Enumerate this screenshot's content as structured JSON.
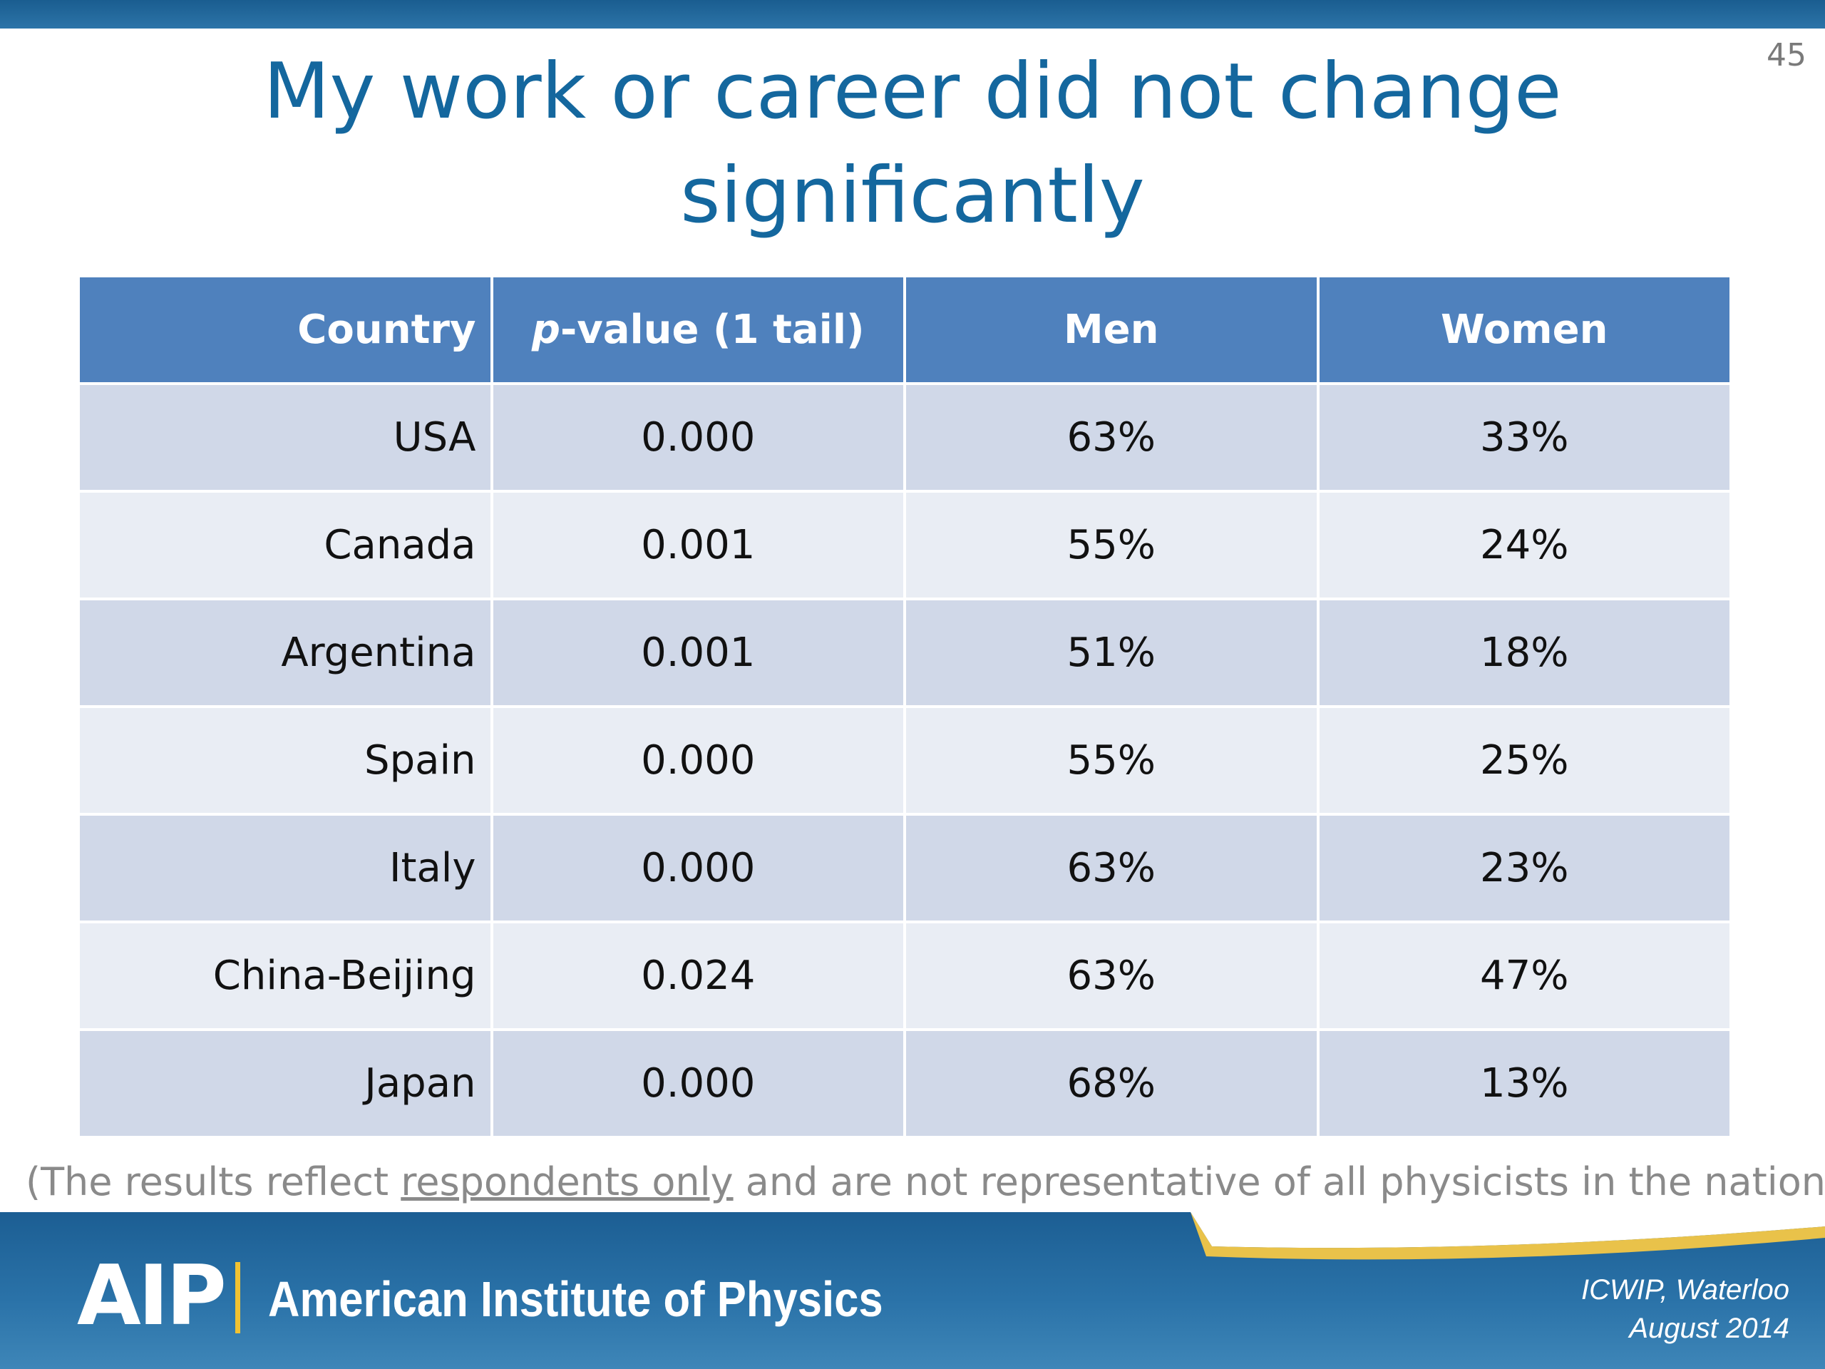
{
  "slide_number": "45",
  "title": "My work or career did not change significantly",
  "table": {
    "headers": {
      "country": "Country",
      "pvalue_prefix": "p",
      "pvalue_rest": "-value (1 tail)",
      "men": "Men",
      "women": "Women"
    },
    "rows": [
      {
        "country": "USA",
        "p_value": "0.000",
        "men": "63%",
        "women": "33%"
      },
      {
        "country": "Canada",
        "p_value": "0.001",
        "men": "55%",
        "women": "24%"
      },
      {
        "country": "Argentina",
        "p_value": "0.001",
        "men": "51%",
        "women": "18%"
      },
      {
        "country": "Spain",
        "p_value": "0.000",
        "men": "55%",
        "women": "25%"
      },
      {
        "country": "Italy",
        "p_value": "0.000",
        "men": "63%",
        "women": "23%"
      },
      {
        "country": "China-Beijing",
        "p_value": "0.024",
        "men": "63%",
        "women": "47%"
      },
      {
        "country": "Japan",
        "p_value": "0.000",
        "men": "68%",
        "women": "13%"
      }
    ]
  },
  "note": {
    "before": "(The results reflect ",
    "underlined": "respondents only",
    "after": " and are not representative of all physicists in the nation.)"
  },
  "footer": {
    "logo": "AIP",
    "org_name": "American Institute of Physics",
    "conference": "ICWIP, Waterloo",
    "date": "August 2014"
  },
  "colors": {
    "title": "#14679e",
    "header_bg": "#4f81bd",
    "row_odd": "#d0d8e8",
    "row_even": "#e9edf4",
    "footer_bg": "#2a72a8",
    "accent_gold": "#f1c232"
  }
}
